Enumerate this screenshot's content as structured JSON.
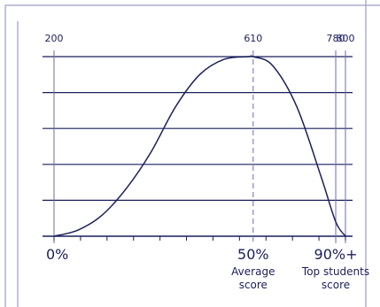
{
  "colors": {
    "ink": "#1a1f5c",
    "frame": "#9a9dc0",
    "background": "#ffffff"
  },
  "chart_data": {
    "type": "line",
    "title": "",
    "xlabel": "",
    "ylabel": "",
    "grid": true,
    "x_range": [
      200,
      800
    ],
    "y_range": [
      0,
      1.0
    ],
    "top_ticks": [
      200,
      610,
      780,
      800
    ],
    "bottom_labels": [
      {
        "percentile": "0%",
        "score": 200,
        "lines": []
      },
      {
        "percentile": "50%",
        "score": 610,
        "lines": [
          "Average",
          "score"
        ]
      },
      {
        "percentile": "90%+",
        "score": 780,
        "lines": [
          "Top students",
          "score"
        ]
      }
    ],
    "curve": {
      "x": [
        200,
        250,
        300,
        350,
        400,
        450,
        500,
        550,
        600,
        610,
        650,
        700,
        750,
        780,
        800
      ],
      "y": [
        0.0,
        0.035,
        0.12,
        0.27,
        0.47,
        0.72,
        0.9,
        0.985,
        1.0,
        1.0,
        0.95,
        0.72,
        0.33,
        0.08,
        0.0
      ]
    },
    "horizontal_gridlines_y": [
      0.0,
      0.2,
      0.4,
      0.6,
      0.8,
      1.0
    ]
  }
}
